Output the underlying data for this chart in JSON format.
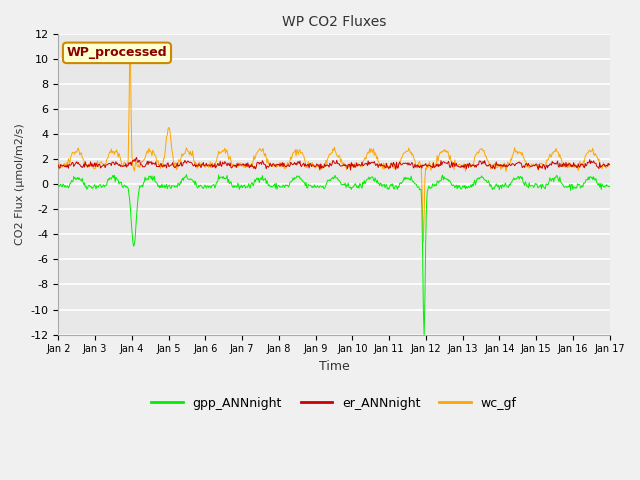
{
  "title": "WP CO2 Fluxes",
  "xlabel": "Time",
  "ylabel": "CO2 Flux (μmol/m2/s)",
  "ylim": [
    -12,
    12
  ],
  "yticks": [
    -12,
    -10,
    -8,
    -6,
    -4,
    -2,
    0,
    2,
    4,
    6,
    8,
    10,
    12
  ],
  "xtick_labels": [
    "Jan 2",
    "Jan 3",
    "Jan 4",
    "Jan 5",
    "Jan 6",
    "Jan 7",
    "Jan 8",
    "Jan 9",
    "Jan 10",
    "Jan 11",
    "Jan 12",
    "Jan 13",
    "Jan 14",
    "Jan 15",
    "Jan 16",
    "Jan 17"
  ],
  "n_days": 15,
  "fig_facecolor": "#f0f0f0",
  "axes_facecolor": "#e8e8e8",
  "grid_color": "#ffffff",
  "annotation_text": "WP_processed",
  "annotation_color": "#8b0000",
  "annotation_bg": "#ffffd0",
  "annotation_border": "#cc8800",
  "legend_entries": [
    "gpp_ANNnight",
    "er_ANNnight",
    "wc_gf"
  ],
  "line_colors": [
    "#00ee00",
    "#cc0000",
    "#ffa500"
  ],
  "seed": 42
}
